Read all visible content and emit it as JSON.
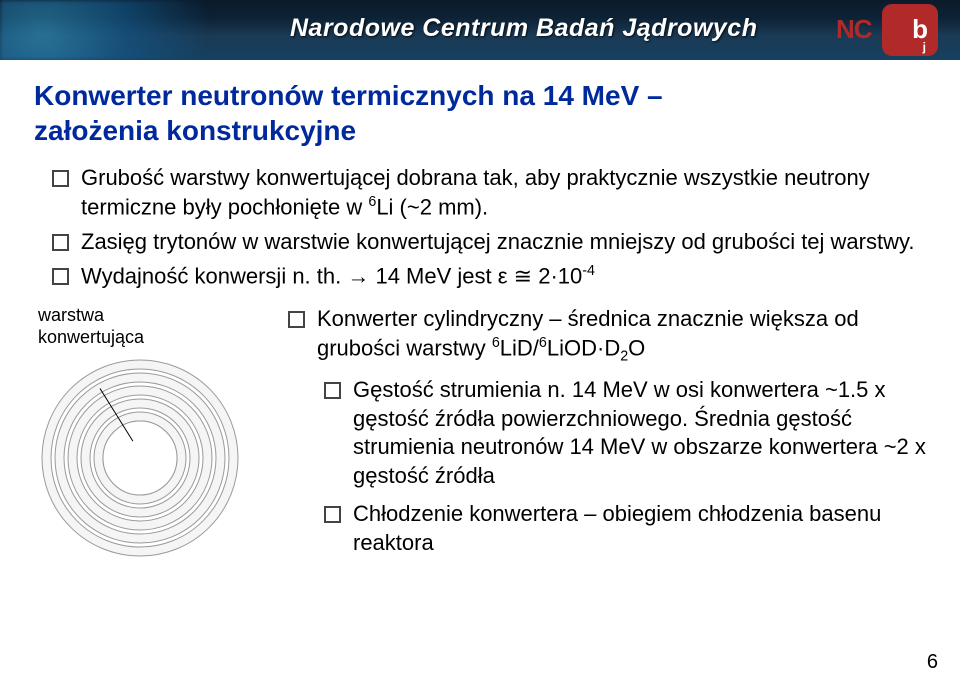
{
  "header": {
    "org_title": "Narodowe Centrum Badań Jądrowych",
    "logo": {
      "left": "NC",
      "right_top": "b",
      "right_bottom": "j"
    }
  },
  "title_line1": "Konwerter neutronów termicznych na 14 MeV –",
  "title_line2": "założenia konstrukcyjne",
  "bullets_top": {
    "b1_pre": "Grubość warstwy konwertującej dobrana tak, aby praktycznie wszystkie neutrony termiczne były pochłonięte w ",
    "b1_sup": "6",
    "b1_post": "Li (~2 mm).",
    "b2": "Zasięg trytonów w warstwie konwertującej znacznie mniejszy od grubości tej warstwy.",
    "b3_pre": "Wydajność konwersji n. th. → 14 MeV jest ε ≅ 2·10",
    "b3_sup": "-4"
  },
  "label": {
    "l1": "warstwa",
    "l2": "konwertująca"
  },
  "bullets_right": {
    "r1_pre": "Konwerter cylindryczny – średnica znacznie większa od grubości warstwy ",
    "r1_s1": "6",
    "r1_mid1": "LiD/",
    "r1_s2": "6",
    "r1_mid2": "LiOD·D",
    "r1_sub": "2",
    "r1_post": "O",
    "r2": "Gęstość strumienia n. 14 MeV w osi konwertera ~1.5 x gęstość źródła powierzchniowego. Średnia gęstość strumienia neutronów 14 MeV w obszarze konwertera ~2 x gęstość źródła",
    "r3": "Chłodzenie konwertera – obiegiem chłodzenia basenu reaktora"
  },
  "rings": {
    "outer_r": 98,
    "gap": 4,
    "ring_width": 9,
    "count": 5,
    "stroke": "#9a9a9a",
    "fill": "#f5f5f5",
    "center_fill": "#ffffff"
  },
  "page_number": "6"
}
